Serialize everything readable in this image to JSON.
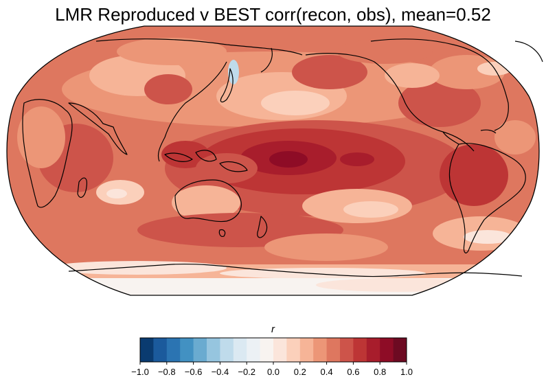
{
  "title": "LMR Reproduced v BEST corr(recon, obs), mean=0.52",
  "colorbar": {
    "label": "r",
    "colormap": "RdBu_r",
    "min": -1.0,
    "max": 1.0,
    "levels": [
      -1.0,
      -0.9,
      -0.8,
      -0.7,
      -0.6,
      -0.5,
      -0.4,
      -0.3,
      -0.2,
      -0.1,
      0.0,
      0.1,
      0.2,
      0.3,
      0.4,
      0.5,
      0.6,
      0.7,
      0.8,
      0.9,
      1.0
    ],
    "ticks": [
      "−1.0",
      "−0.8",
      "−0.6",
      "−0.4",
      "−0.2",
      "0.0",
      "0.2",
      "0.4",
      "0.6",
      "0.8",
      "1.0"
    ],
    "colors": [
      "#0a3b70",
      "#1b5a9c",
      "#2b74b2",
      "#4291c2",
      "#6aabd0",
      "#96c5df",
      "#bfdbeb",
      "#dbe9f2",
      "#ecf1f5",
      "#f8f3f0",
      "#fbe5db",
      "#fbd0bb",
      "#f6b497",
      "#ec9677",
      "#de775f",
      "#cd544a",
      "#bd3535",
      "#a81d2c",
      "#8e0c26",
      "#6d0a22"
    ]
  },
  "map": {
    "projection": "Robinson",
    "central_longitude": 180,
    "field": "correlation",
    "mean": 0.52
  }
}
